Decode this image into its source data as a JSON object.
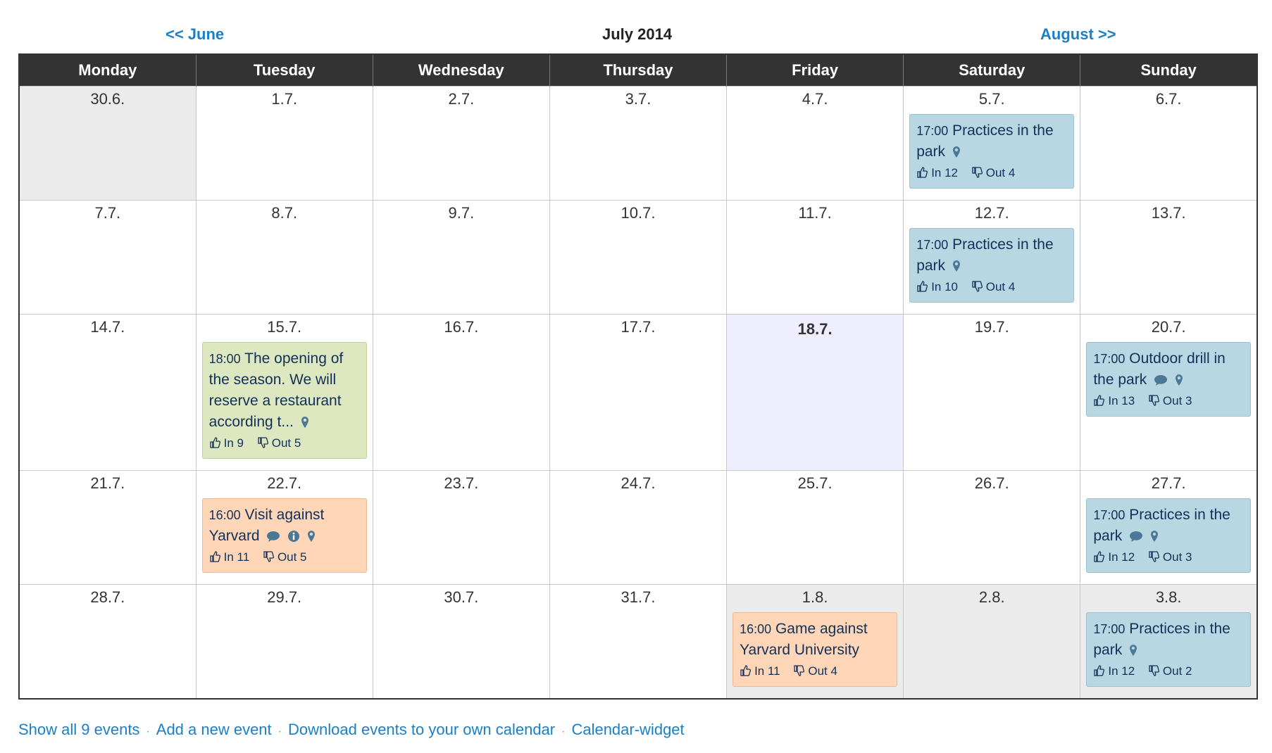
{
  "nav": {
    "prev": "<< June",
    "title": "July 2014",
    "next": "August >>"
  },
  "weekdays": [
    "Monday",
    "Tuesday",
    "Wednesday",
    "Thursday",
    "Friday",
    "Saturday",
    "Sunday"
  ],
  "days": {
    "w1": [
      "30.6.",
      "1.7.",
      "2.7.",
      "3.7.",
      "4.7.",
      "5.7.",
      "6.7."
    ],
    "w2": [
      "7.7.",
      "8.7.",
      "9.7.",
      "10.7.",
      "11.7.",
      "12.7.",
      "13.7."
    ],
    "w3": [
      "14.7.",
      "15.7.",
      "16.7.",
      "17.7.",
      "18.7.",
      "19.7.",
      "20.7."
    ],
    "w4": [
      "21.7.",
      "22.7.",
      "23.7.",
      "24.7.",
      "25.7.",
      "26.7.",
      "27.7."
    ],
    "w5": [
      "28.7.",
      "29.7.",
      "30.7.",
      "31.7.",
      "1.8.",
      "2.8.",
      "3.8."
    ]
  },
  "events": {
    "e1": {
      "time": "17:00",
      "title": "Practices in the park",
      "in": "In 12",
      "out": "Out 4"
    },
    "e2": {
      "time": "17:00",
      "title": "Practices in the park",
      "in": "In 10",
      "out": "Out 4"
    },
    "e3": {
      "time": "18:00",
      "title": "The opening of the season. We will reserve a restaurant according t...",
      "in": "In 9",
      "out": "Out 5"
    },
    "e4": {
      "time": "17:00",
      "title": "Outdoor drill in the park",
      "in": "In 13",
      "out": "Out 3"
    },
    "e5": {
      "time": "16:00",
      "title": "Visit against Yarvard",
      "in": "In 11",
      "out": "Out 5"
    },
    "e6": {
      "time": "17:00",
      "title": "Practices in the park",
      "in": "In 12",
      "out": "Out 3"
    },
    "e7": {
      "time": "16:00",
      "title": "Game against Yarvard University",
      "in": "In 11",
      "out": "Out 4"
    },
    "e8": {
      "time": "17:00",
      "title": "Practices in the park",
      "in": "In 12",
      "out": "Out 2"
    }
  },
  "footer": {
    "show_all": "Show all 9 events",
    "add": "Add a new event",
    "download": "Download events to your own calendar",
    "widget": "Calendar-widget",
    "sep": "·"
  },
  "colors": {
    "link": "#1b7fc6",
    "header_bg": "#333333",
    "event_blue": "#b8d7e2",
    "event_green": "#dde8c0",
    "event_orange": "#ffd6b8",
    "today_bg": "#eeeeff",
    "other_month_bg": "#ebebeb"
  },
  "icons": {
    "location": "map-pin-icon",
    "comment": "speech-bubble-icon",
    "info": "info-icon",
    "in": "thumbs-up-icon",
    "out": "thumbs-down-icon"
  }
}
